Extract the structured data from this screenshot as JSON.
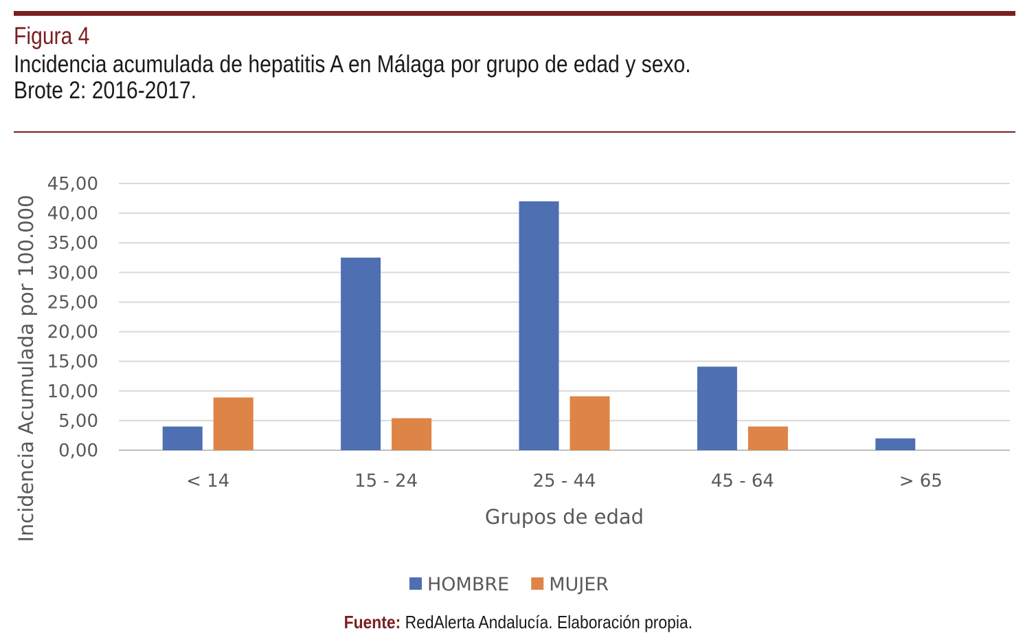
{
  "header": {
    "figure_label": "Figura 4",
    "title_line1": "Incidencia acumulada de hepatitis A en Málaga por grupo de edad y sexo.",
    "title_line2": "Brote 2: 2016-2017."
  },
  "chart_data": {
    "type": "bar",
    "title": "",
    "xlabel": "Grupos de edad",
    "ylabel": "Incidencia Acumulada por 100.000",
    "categories": [
      "< 14",
      "15 - 24",
      "25 - 44",
      "45 - 64",
      "> 65"
    ],
    "series": [
      {
        "name": "HOMBRE",
        "color": "#4f6fb3",
        "values": [
          4.0,
          32.5,
          42.0,
          14.1,
          2.0
        ]
      },
      {
        "name": "MUJER",
        "color": "#dd8446",
        "values": [
          8.9,
          5.4,
          9.1,
          4.0,
          0.0
        ]
      }
    ],
    "ylim": [
      0,
      45
    ],
    "yticks": [
      "0,00",
      "5,00",
      "10,00",
      "15,00",
      "20,00",
      "25,00",
      "30,00",
      "35,00",
      "40,00",
      "45,00"
    ],
    "grid": true,
    "legend_position": "bottom"
  },
  "source": {
    "label": "Fuente:",
    "text": " RedAlerta Andalucía. Elaboración propia."
  }
}
